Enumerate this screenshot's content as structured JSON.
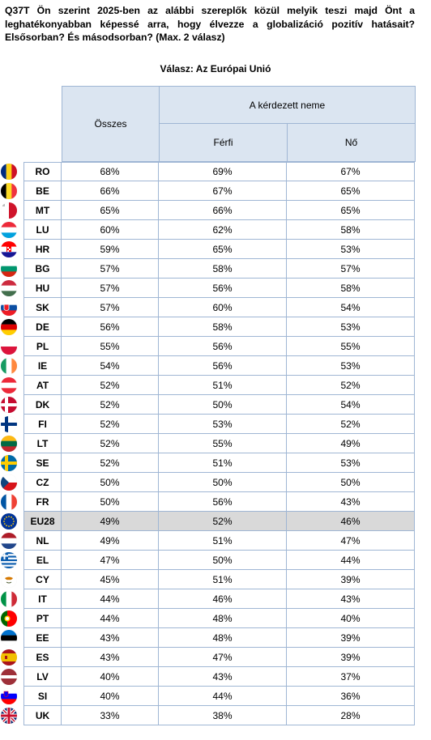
{
  "question": "Q37T Ön szerint 2025-ben az alábbi szereplők közül melyik teszi majd Önt a leghatékonyabban képessé arra, hogy élvezze a globalizáció pozitív hatásait? Elsősorban? És másodsorban? (Max. 2 válasz)",
  "subtitle": "Válasz: Az Európai Unió",
  "headers": {
    "total": "Összes",
    "group": "A kérdezett neme",
    "male": "Férfi",
    "female": "Nő"
  },
  "highlight_color": "#d9d9d9",
  "rows": [
    {
      "code": "RO",
      "total": "68%",
      "male": "69%",
      "female": "67%",
      "icon": "romania-flag-icon"
    },
    {
      "code": "BE",
      "total": "66%",
      "male": "67%",
      "female": "65%",
      "icon": "belgium-flag-icon"
    },
    {
      "code": "MT",
      "total": "65%",
      "male": "66%",
      "female": "65%",
      "icon": "malta-flag-icon"
    },
    {
      "code": "LU",
      "total": "60%",
      "male": "62%",
      "female": "58%",
      "icon": "luxembourg-flag-icon"
    },
    {
      "code": "HR",
      "total": "59%",
      "male": "65%",
      "female": "53%",
      "icon": "croatia-flag-icon"
    },
    {
      "code": "BG",
      "total": "57%",
      "male": "58%",
      "female": "57%",
      "icon": "bulgaria-flag-icon"
    },
    {
      "code": "HU",
      "total": "57%",
      "male": "56%",
      "female": "58%",
      "icon": "hungary-flag-icon"
    },
    {
      "code": "SK",
      "total": "57%",
      "male": "60%",
      "female": "54%",
      "icon": "slovakia-flag-icon"
    },
    {
      "code": "DE",
      "total": "56%",
      "male": "58%",
      "female": "53%",
      "icon": "germany-flag-icon"
    },
    {
      "code": "PL",
      "total": "55%",
      "male": "56%",
      "female": "55%",
      "icon": "poland-flag-icon"
    },
    {
      "code": "IE",
      "total": "54%",
      "male": "56%",
      "female": "53%",
      "icon": "ireland-flag-icon"
    },
    {
      "code": "AT",
      "total": "52%",
      "male": "51%",
      "female": "52%",
      "icon": "austria-flag-icon"
    },
    {
      "code": "DK",
      "total": "52%",
      "male": "50%",
      "female": "54%",
      "icon": "denmark-flag-icon"
    },
    {
      "code": "FI",
      "total": "52%",
      "male": "53%",
      "female": "52%",
      "icon": "finland-flag-icon"
    },
    {
      "code": "LT",
      "total": "52%",
      "male": "55%",
      "female": "49%",
      "icon": "lithuania-flag-icon"
    },
    {
      "code": "SE",
      "total": "52%",
      "male": "51%",
      "female": "53%",
      "icon": "sweden-flag-icon"
    },
    {
      "code": "CZ",
      "total": "50%",
      "male": "50%",
      "female": "50%",
      "icon": "czechia-flag-icon"
    },
    {
      "code": "FR",
      "total": "50%",
      "male": "56%",
      "female": "43%",
      "icon": "france-flag-icon"
    },
    {
      "code": "EU28",
      "total": "49%",
      "male": "52%",
      "female": "46%",
      "icon": "eu-flag-icon",
      "highlight": true
    },
    {
      "code": "NL",
      "total": "49%",
      "male": "51%",
      "female": "47%",
      "icon": "netherlands-flag-icon"
    },
    {
      "code": "EL",
      "total": "47%",
      "male": "50%",
      "female": "44%",
      "icon": "greece-flag-icon"
    },
    {
      "code": "CY",
      "total": "45%",
      "male": "51%",
      "female": "39%",
      "icon": "cyprus-flag-icon"
    },
    {
      "code": "IT",
      "total": "44%",
      "male": "46%",
      "female": "43%",
      "icon": "italy-flag-icon"
    },
    {
      "code": "PT",
      "total": "44%",
      "male": "48%",
      "female": "40%",
      "icon": "portugal-flag-icon"
    },
    {
      "code": "EE",
      "total": "43%",
      "male": "48%",
      "female": "39%",
      "icon": "estonia-flag-icon"
    },
    {
      "code": "ES",
      "total": "43%",
      "male": "47%",
      "female": "39%",
      "icon": "spain-flag-icon"
    },
    {
      "code": "LV",
      "total": "40%",
      "male": "43%",
      "female": "37%",
      "icon": "latvia-flag-icon"
    },
    {
      "code": "SI",
      "total": "40%",
      "male": "44%",
      "female": "36%",
      "icon": "slovenia-flag-icon"
    },
    {
      "code": "UK",
      "total": "33%",
      "male": "38%",
      "female": "28%",
      "icon": "uk-flag-icon"
    }
  ]
}
